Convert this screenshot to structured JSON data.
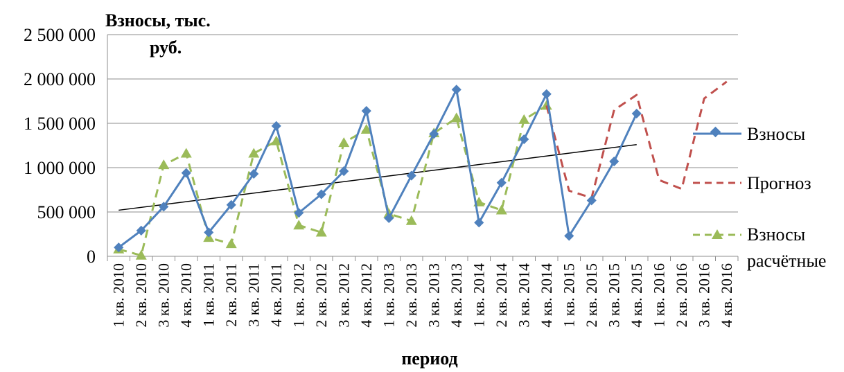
{
  "chart_data": {
    "type": "line",
    "title_lines": [
      "Взносы, тыс.",
      "руб."
    ],
    "xlabel": "период",
    "ylabel": "",
    "ylim": [
      0,
      2500000
    ],
    "yticks": [
      0,
      500000,
      1000000,
      1500000,
      2000000,
      2500000
    ],
    "ytick_labels": [
      "0",
      "500 000",
      "1 000 000",
      "1 500 000",
      "2 000 000",
      "2 500 000"
    ],
    "grid": "horizontal",
    "legend_position": "right",
    "categories": [
      "1 кв. 2010",
      "2 кв. 2010",
      "3 кв. 2010",
      "4 кв. 2010",
      "1 кв. 2011",
      "2 кв. 2011",
      "3 кв. 2011",
      "4 кв. 2011",
      "1 кв. 2012",
      "2 кв. 2012",
      "3 кв. 2012",
      "4 кв. 2012",
      "1 кв. 2013",
      "2 кв. 2013",
      "3 кв. 2013",
      "4 кв. 2013",
      "1 кв. 2014",
      "2 кв. 2014",
      "3 кв. 2014",
      "4 кв. 2014",
      "1 кв. 2015",
      "2 кв. 2015",
      "3 кв. 2015",
      "4 кв. 2015",
      "1 кв. 2016",
      "2 кв. 2016",
      "3 кв. 2016",
      "4 кв. 2016"
    ],
    "series": [
      {
        "name": "Взносы",
        "style": "solid-diamond",
        "color": "#4F81BD",
        "values": [
          100000,
          290000,
          560000,
          940000,
          270000,
          580000,
          930000,
          1470000,
          490000,
          700000,
          960000,
          1640000,
          430000,
          910000,
          1380000,
          1880000,
          380000,
          830000,
          1320000,
          1830000,
          230000,
          630000,
          1070000,
          1610000,
          null,
          null,
          null,
          null
        ]
      },
      {
        "name": "Прогноз",
        "style": "dashed",
        "color": "#C0504D",
        "values": [
          null,
          null,
          null,
          null,
          null,
          null,
          null,
          null,
          null,
          null,
          null,
          null,
          null,
          null,
          null,
          null,
          null,
          null,
          null,
          1700000,
          740000,
          660000,
          1650000,
          1820000,
          860000,
          760000,
          1780000,
          1970000
        ]
      },
      {
        "name": "Взносы расчётные",
        "style": "dashed-triangle",
        "color": "#9BBB59",
        "values": [
          80000,
          10000,
          1030000,
          1160000,
          210000,
          140000,
          1160000,
          1300000,
          350000,
          270000,
          1280000,
          1430000,
          480000,
          400000,
          1390000,
          1560000,
          610000,
          520000,
          1540000,
          1700000,
          null,
          null,
          null,
          null,
          null,
          null,
          null,
          null
        ]
      }
    ],
    "trendline": {
      "color": "#000000",
      "start": {
        "category": "1 кв. 2010",
        "value": 520000
      },
      "end": {
        "category": "4 кв. 2015",
        "value": 1260000
      }
    }
  },
  "legend": {
    "items": [
      {
        "label": "Взносы"
      },
      {
        "label": "Прогноз"
      },
      {
        "label_lines": [
          "Взносы",
          "расчётные"
        ]
      }
    ]
  }
}
